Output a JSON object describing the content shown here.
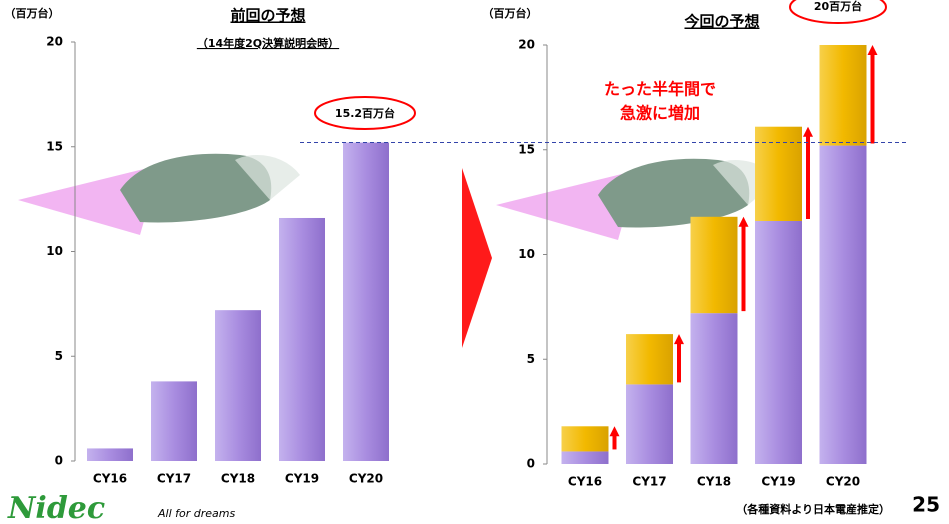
{
  "chart_data": [
    {
      "type": "bar",
      "title": "前回の予想",
      "subtitle": "（14年度2Q決算説明会時）",
      "y_label": "（百万台）",
      "categories": [
        "CY16",
        "CY17",
        "CY18",
        "CY19",
        "CY20"
      ],
      "values": [
        0.6,
        3.8,
        7.2,
        11.6,
        15.2
      ],
      "color": "#a98de0",
      "ylim": [
        0,
        20
      ],
      "yticks": [
        0,
        5,
        10,
        15,
        20
      ],
      "annotation": "15.2百万台"
    },
    {
      "type": "bar",
      "stacked": true,
      "title": "今回の予想",
      "y_label": "（百万台）",
      "categories": [
        "CY16",
        "CY17",
        "CY18",
        "CY19",
        "CY20"
      ],
      "series": [
        {
          "color": "#a98de0",
          "values": [
            0.6,
            3.8,
            7.2,
            11.6,
            15.2
          ]
        },
        {
          "color": "#f2b900",
          "values": [
            1.2,
            2.4,
            4.6,
            4.5,
            4.8
          ]
        }
      ],
      "ylim": [
        0,
        20
      ],
      "yticks": [
        0,
        5,
        10,
        15,
        20
      ],
      "annotations": [
        "たった半年間で",
        "急激に増加",
        "20百万台"
      ]
    }
  ],
  "footer": {
    "source": "（各種資料より日本電産推定）",
    "page": "25"
  },
  "logo": {
    "name": "Nidec",
    "tagline": "All for dreams"
  }
}
